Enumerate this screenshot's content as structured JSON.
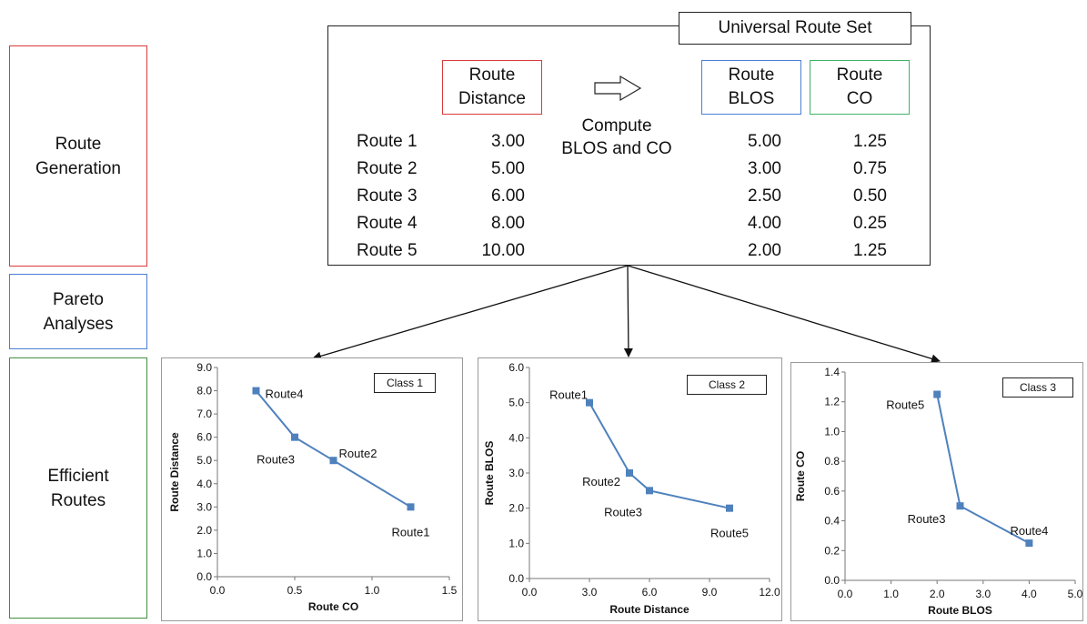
{
  "stages": [
    {
      "label": "Route\nGeneration",
      "color": "#d93a3a"
    },
    {
      "label": "Pareto\nAnalyses",
      "color": "#4a7fd4"
    },
    {
      "label": "Efficient\nRoutes",
      "color": "#3f8f3f"
    }
  ],
  "universal_route_set": {
    "title": "Universal Route Set",
    "compute_label": "Compute\nBLOS and CO",
    "headers": [
      {
        "label": "Route\nDistance",
        "color": "#d93a3a"
      },
      {
        "label": "Route\nBLOS",
        "color": "#4a7fd4"
      },
      {
        "label": "Route\nCO",
        "color": "#3fb36b"
      }
    ],
    "routes": [
      {
        "name": "Route 1",
        "distance": "3.00",
        "blos": "5.00",
        "co": "1.25"
      },
      {
        "name": "Route 2",
        "distance": "5.00",
        "blos": "3.00",
        "co": "0.75"
      },
      {
        "name": "Route 3",
        "distance": "6.00",
        "blos": "2.50",
        "co": "0.50"
      },
      {
        "name": "Route 4",
        "distance": "8.00",
        "blos": "4.00",
        "co": "0.25"
      },
      {
        "name": "Route 5",
        "distance": "10.00",
        "blos": "2.00",
        "co": "1.25"
      }
    ]
  },
  "chart_data": [
    {
      "type": "line",
      "title": "",
      "class_label": "Class 1",
      "xlabel": "Route CO",
      "ylabel": "Route Distance",
      "xlim": [
        0,
        1.5
      ],
      "ylim": [
        0,
        9
      ],
      "xticks": [
        "0.0",
        "0.5",
        "1.0",
        "1.5"
      ],
      "yticks": [
        "0.0",
        "1.0",
        "2.0",
        "3.0",
        "4.0",
        "5.0",
        "6.0",
        "7.0",
        "8.0",
        "9.0"
      ],
      "series_color": "#4f81bd",
      "points": [
        {
          "label": "Route4",
          "x": 0.25,
          "y": 8.0
        },
        {
          "label": "Route3",
          "x": 0.5,
          "y": 6.0
        },
        {
          "label": "Route2",
          "x": 0.75,
          "y": 5.0
        },
        {
          "label": "Route1",
          "x": 1.25,
          "y": 3.0
        }
      ]
    },
    {
      "type": "line",
      "title": "",
      "class_label": "Class 2",
      "xlabel": "Route Distance",
      "ylabel": "Route BLOS",
      "xlim": [
        0,
        12
      ],
      "ylim": [
        0,
        6
      ],
      "xticks": [
        "0.0",
        "3.0",
        "6.0",
        "9.0",
        "12.0"
      ],
      "yticks": [
        "0.0",
        "1.0",
        "2.0",
        "3.0",
        "4.0",
        "5.0",
        "6.0"
      ],
      "series_color": "#4f81bd",
      "points": [
        {
          "label": "Route1",
          "x": 3.0,
          "y": 5.0
        },
        {
          "label": "Route2",
          "x": 5.0,
          "y": 3.0
        },
        {
          "label": "Route3",
          "x": 6.0,
          "y": 2.5
        },
        {
          "label": "Route5",
          "x": 10.0,
          "y": 2.0
        }
      ]
    },
    {
      "type": "line",
      "title": "",
      "class_label": "Class 3",
      "xlabel": "Route BLOS",
      "ylabel": "Route CO",
      "xlim": [
        0,
        5
      ],
      "ylim": [
        0,
        1.4
      ],
      "xticks": [
        "0.0",
        "1.0",
        "2.0",
        "3.0",
        "4.0",
        "5.0"
      ],
      "yticks": [
        "0.0",
        "0.2",
        "0.4",
        "0.6",
        "0.8",
        "1.0",
        "1.2",
        "1.4"
      ],
      "series_color": "#4f81bd",
      "points": [
        {
          "label": "Route5",
          "x": 2.0,
          "y": 1.25
        },
        {
          "label": "Route3",
          "x": 2.5,
          "y": 0.5
        },
        {
          "label": "Route4",
          "x": 4.0,
          "y": 0.25
        }
      ]
    }
  ]
}
